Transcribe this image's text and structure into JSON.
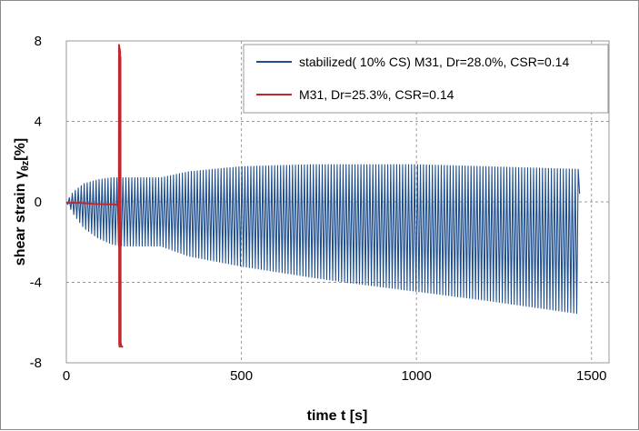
{
  "chart_data": {
    "type": "line",
    "title": "",
    "xlabel": "time t [s]",
    "ylabel": {
      "main": "shear strain γ",
      "subscript": "θz",
      "unit": "[%]"
    },
    "xlim": [
      0,
      1550
    ],
    "ylim": [
      -8,
      8
    ],
    "x_ticks": [
      0,
      500,
      1000,
      1500
    ],
    "y_ticks": [
      -8,
      -4,
      0,
      4,
      8
    ],
    "grid": "dashed",
    "legend_position": "top-right",
    "series": [
      {
        "name": "stabilized( 10% CS) M31, Dr=28.0%, CSR=0.14",
        "color": "#1F4E8C",
        "style": "cyclic",
        "period": 8.5,
        "end_time": 1465,
        "envelope": {
          "t": [
            0,
            20,
            50,
            90,
            130,
            160,
            270,
            350,
            500,
            700,
            800,
            1000,
            1200,
            1460
          ],
          "upper": [
            0.0,
            0.5,
            0.9,
            1.1,
            1.2,
            1.2,
            1.2,
            1.5,
            1.75,
            1.85,
            1.85,
            1.85,
            1.75,
            1.62
          ],
          "lower": [
            0.0,
            -0.6,
            -1.3,
            -1.8,
            -2.1,
            -2.2,
            -2.2,
            -2.7,
            -3.2,
            -3.75,
            -4.0,
            -4.45,
            -4.9,
            -5.55
          ]
        }
      },
      {
        "name": "M31, Dr=25.3%, CSR=0.14",
        "color": "#C0282D",
        "style": "line",
        "x": [
          0,
          40,
          80,
          110,
          130,
          146,
          148,
          150,
          150.5,
          151,
          151.5,
          152,
          152.5,
          153,
          153.5,
          154,
          154.5,
          155,
          156,
          158,
          162
        ],
        "y": [
          -0.05,
          -0.05,
          -0.1,
          -0.12,
          -0.12,
          -0.15,
          0.0,
          -2.0,
          7.8,
          -7.1,
          7.7,
          -7.2,
          7.6,
          -7.2,
          7.5,
          -7.1,
          7.2,
          -7.0,
          -7.1,
          -7.2,
          -7.2
        ]
      }
    ]
  }
}
